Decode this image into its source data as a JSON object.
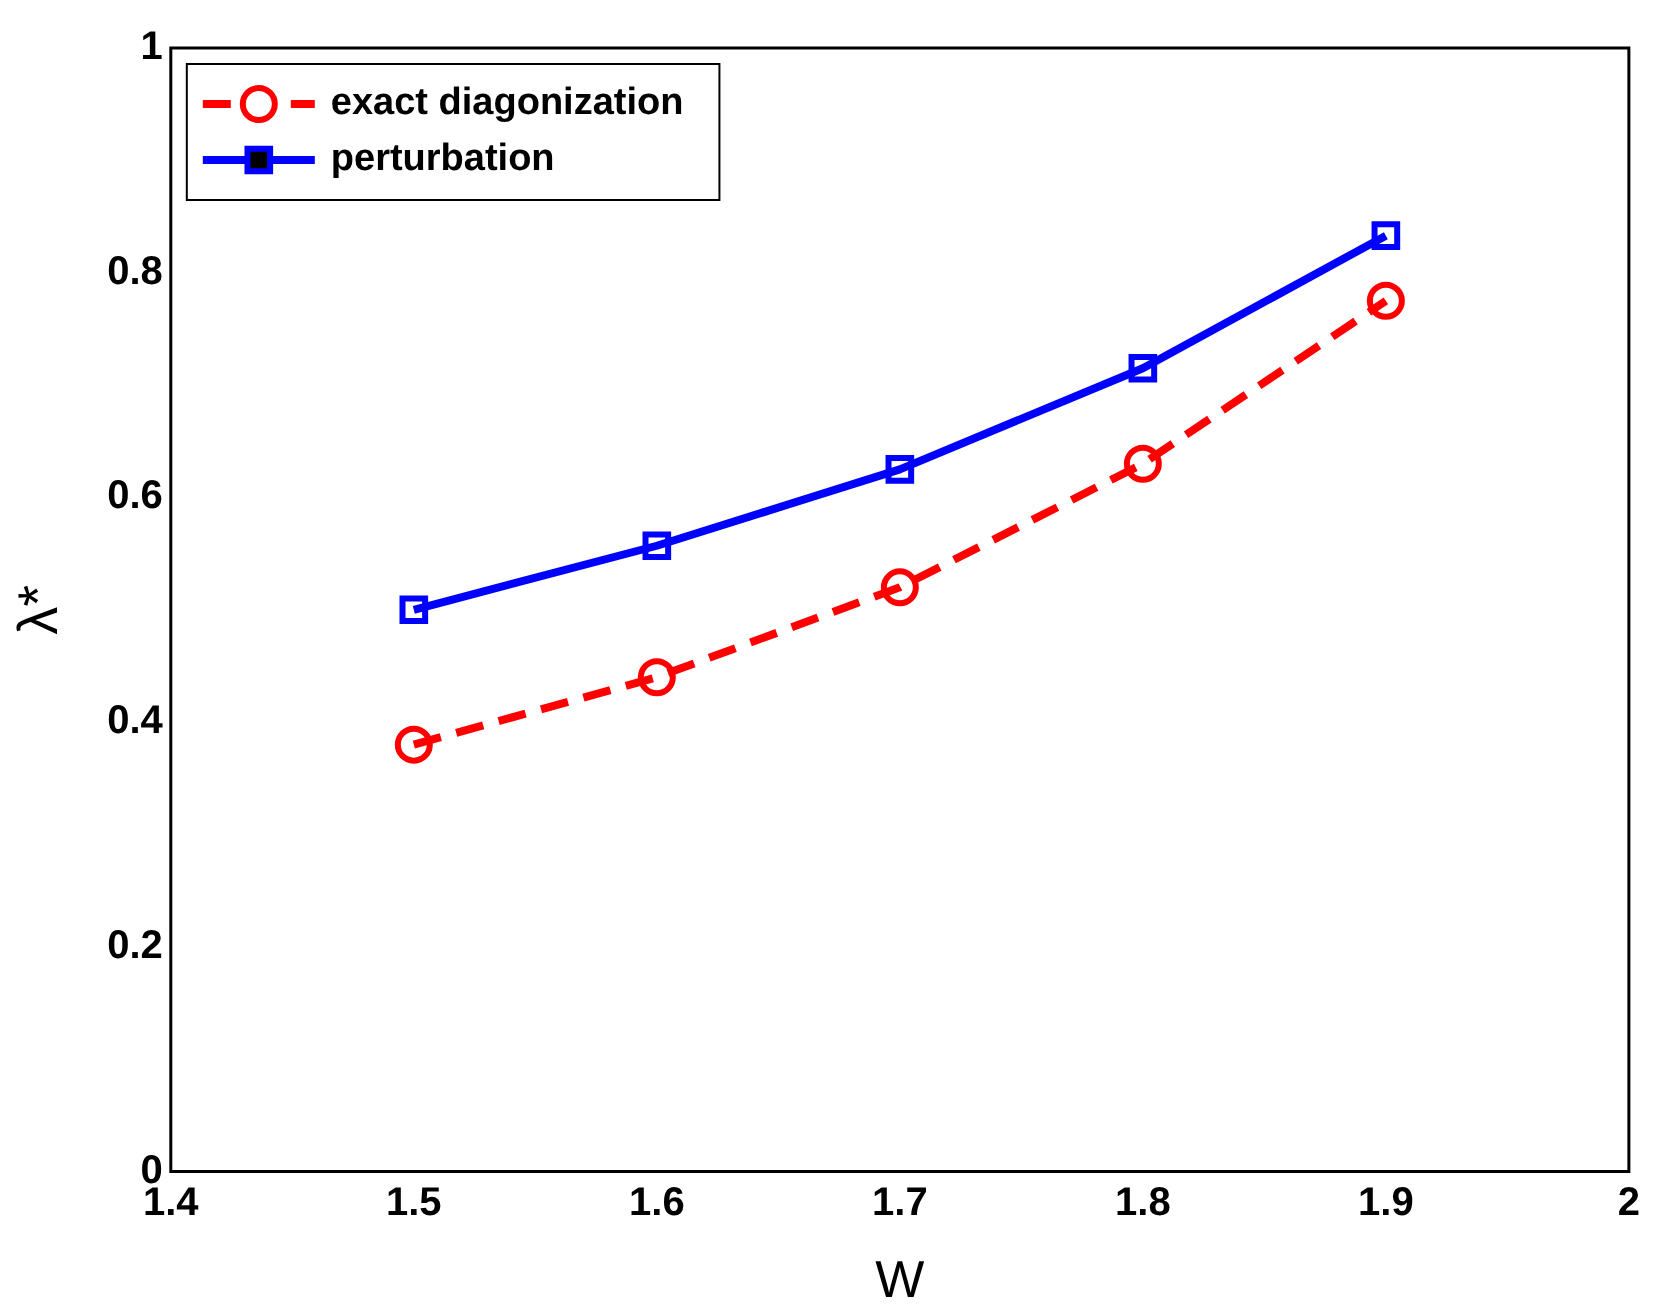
{
  "chart_data": {
    "type": "line",
    "xlabel": "W",
    "ylabel": "λ*",
    "x": [
      1.5,
      1.6,
      1.7,
      1.8,
      1.9
    ],
    "series": [
      {
        "name": "exact diagonization",
        "color": "#ff0000",
        "values": [
          0.38,
          0.44,
          0.52,
          0.63,
          0.775
        ],
        "marker": "circle",
        "line_style": "dashed"
      },
      {
        "name": "perturbation",
        "color": "#0000ff",
        "values": [
          0.5,
          0.557,
          0.625,
          0.715,
          0.833
        ],
        "marker": "square",
        "line_style": "solid"
      }
    ],
    "xlim": [
      1.4,
      2
    ],
    "xticks": [
      1.4,
      1.5,
      1.6,
      1.7,
      1.8,
      1.9,
      2
    ],
    "ylim": [
      0,
      1
    ],
    "yticks": [
      0,
      0.2,
      0.4,
      0.6,
      0.8,
      1
    ],
    "grid": false,
    "legend": "top left"
  }
}
